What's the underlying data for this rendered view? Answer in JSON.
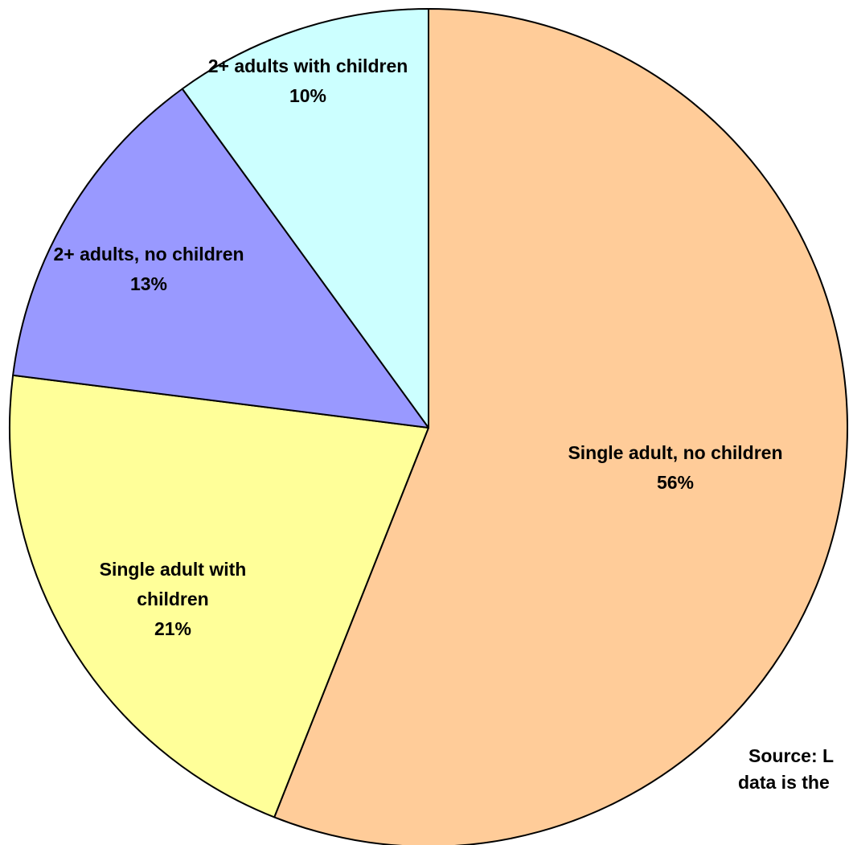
{
  "chart_data": {
    "type": "pie",
    "slices": [
      {
        "label_lines": [
          "Single adult, no children"
        ],
        "value": 56,
        "value_text": "56%",
        "color": "#FFCC99"
      },
      {
        "label_lines": [
          "Single adult with",
          "children"
        ],
        "value": 21,
        "value_text": "21%",
        "color": "#FFFF99"
      },
      {
        "label_lines": [
          "2+ adults, no children"
        ],
        "value": 13,
        "value_text": "13%",
        "color": "#9999FF"
      },
      {
        "label_lines": [
          "2+ adults with children"
        ],
        "value": 10,
        "value_text": "10%",
        "color": "#CCFFFF"
      }
    ],
    "start_angle_deg": 0,
    "direction": "clockwise",
    "annotation_lines": [
      "Source: L",
      "data is the"
    ]
  }
}
